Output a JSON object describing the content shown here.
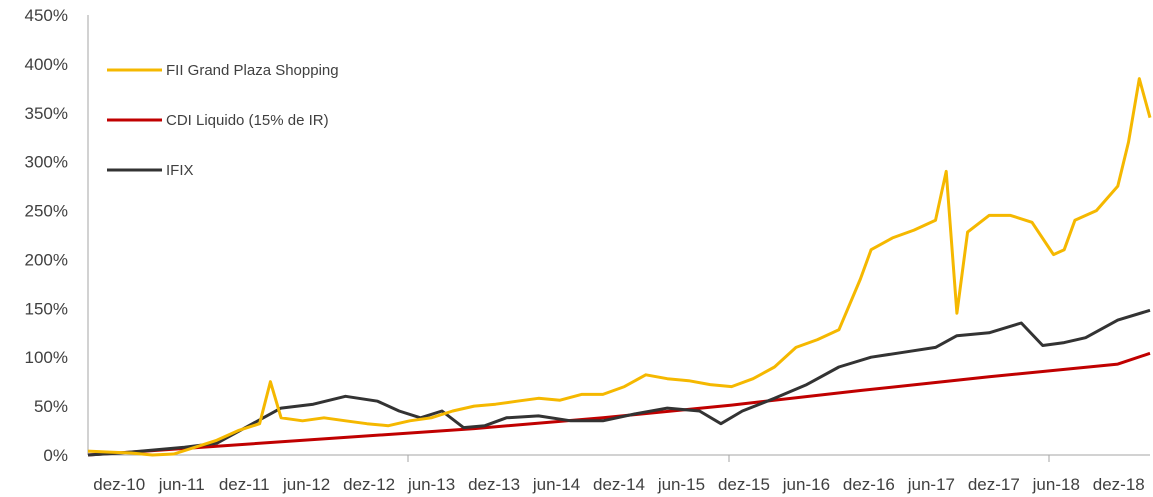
{
  "chart_data": {
    "type": "line",
    "title": "",
    "xlabel": "",
    "ylabel": "",
    "ylim": [
      0,
      450
    ],
    "y_unit": "%",
    "yticks": [
      "0%",
      "50%",
      "100%",
      "150%",
      "200%",
      "250%",
      "300%",
      "350%",
      "400%",
      "450%"
    ],
    "xticks": [
      "dez-10",
      "jun-11",
      "dez-11",
      "jun-12",
      "dez-12",
      "jun-13",
      "dez-13",
      "jun-14",
      "dez-14",
      "jun-15",
      "dez-15",
      "jun-16",
      "dez-16",
      "jun-17",
      "dez-17",
      "jun-18",
      "dez-18"
    ],
    "xlim": [
      "2010-12",
      "2019-02"
    ],
    "grid": false,
    "legend_position": "top-left",
    "series": [
      {
        "name": "FII Grand Plaza Shopping",
        "color": "#f5b800",
        "points": [
          [
            "2010-12",
            4
          ],
          [
            "2011-02",
            3
          ],
          [
            "2011-04",
            2
          ],
          [
            "2011-06",
            0
          ],
          [
            "2011-08",
            1
          ],
          [
            "2011-10",
            8
          ],
          [
            "2011-12",
            15
          ],
          [
            "2012-02",
            25
          ],
          [
            "2012-04",
            32
          ],
          [
            "2012-05",
            75
          ],
          [
            "2012-06",
            38
          ],
          [
            "2012-08",
            35
          ],
          [
            "2012-10",
            38
          ],
          [
            "2012-12",
            35
          ],
          [
            "2013-02",
            32
          ],
          [
            "2013-04",
            30
          ],
          [
            "2013-06",
            35
          ],
          [
            "2013-08",
            38
          ],
          [
            "2013-10",
            45
          ],
          [
            "2013-12",
            50
          ],
          [
            "2014-02",
            52
          ],
          [
            "2014-04",
            55
          ],
          [
            "2014-06",
            58
          ],
          [
            "2014-08",
            56
          ],
          [
            "2014-10",
            62
          ],
          [
            "2014-12",
            62
          ],
          [
            "2015-02",
            70
          ],
          [
            "2015-04",
            82
          ],
          [
            "2015-06",
            78
          ],
          [
            "2015-08",
            76
          ],
          [
            "2015-10",
            72
          ],
          [
            "2015-12",
            70
          ],
          [
            "2016-02",
            78
          ],
          [
            "2016-04",
            90
          ],
          [
            "2016-06",
            110
          ],
          [
            "2016-08",
            118
          ],
          [
            "2016-10",
            128
          ],
          [
            "2016-12",
            180
          ],
          [
            "2017-01",
            210
          ],
          [
            "2017-03",
            222
          ],
          [
            "2017-05",
            230
          ],
          [
            "2017-07",
            240
          ],
          [
            "2017-08",
            290
          ],
          [
            "2017-09",
            145
          ],
          [
            "2017-10",
            228
          ],
          [
            "2017-12",
            245
          ],
          [
            "2018-02",
            245
          ],
          [
            "2018-04",
            238
          ],
          [
            "2018-06",
            205
          ],
          [
            "2018-07",
            210
          ],
          [
            "2018-08",
            240
          ],
          [
            "2018-10",
            250
          ],
          [
            "2018-12",
            275
          ],
          [
            "2019-01",
            320
          ],
          [
            "2019-02",
            385
          ],
          [
            "2019-03",
            345
          ]
        ]
      },
      {
        "name": "CDI Liquido (15% de IR)",
        "color": "#c00000",
        "points": [
          [
            "2010-12",
            0
          ],
          [
            "2011-12",
            9
          ],
          [
            "2012-12",
            18
          ],
          [
            "2013-12",
            27
          ],
          [
            "2014-12",
            38
          ],
          [
            "2015-12",
            51
          ],
          [
            "2016-12",
            66
          ],
          [
            "2017-12",
            80
          ],
          [
            "2018-12",
            93
          ],
          [
            "2019-03",
            104
          ]
        ]
      },
      {
        "name": "IFIX",
        "color": "#333333",
        "points": [
          [
            "2010-12",
            0
          ],
          [
            "2011-03",
            2
          ],
          [
            "2011-06",
            5
          ],
          [
            "2011-09",
            8
          ],
          [
            "2011-12",
            12
          ],
          [
            "2012-03",
            30
          ],
          [
            "2012-06",
            48
          ],
          [
            "2012-09",
            52
          ],
          [
            "2012-12",
            60
          ],
          [
            "2013-03",
            55
          ],
          [
            "2013-05",
            45
          ],
          [
            "2013-07",
            38
          ],
          [
            "2013-09",
            45
          ],
          [
            "2013-11",
            28
          ],
          [
            "2014-01",
            30
          ],
          [
            "2014-03",
            38
          ],
          [
            "2014-06",
            40
          ],
          [
            "2014-09",
            35
          ],
          [
            "2014-12",
            35
          ],
          [
            "2015-03",
            42
          ],
          [
            "2015-06",
            48
          ],
          [
            "2015-09",
            45
          ],
          [
            "2015-11",
            32
          ],
          [
            "2016-01",
            45
          ],
          [
            "2016-04",
            58
          ],
          [
            "2016-07",
            72
          ],
          [
            "2016-10",
            90
          ],
          [
            "2017-01",
            100
          ],
          [
            "2017-04",
            105
          ],
          [
            "2017-07",
            110
          ],
          [
            "2017-09",
            122
          ],
          [
            "2017-12",
            125
          ],
          [
            "2018-03",
            135
          ],
          [
            "2018-05",
            112
          ],
          [
            "2018-07",
            115
          ],
          [
            "2018-09",
            120
          ],
          [
            "2018-12",
            138
          ],
          [
            "2019-03",
            148
          ]
        ]
      }
    ]
  }
}
